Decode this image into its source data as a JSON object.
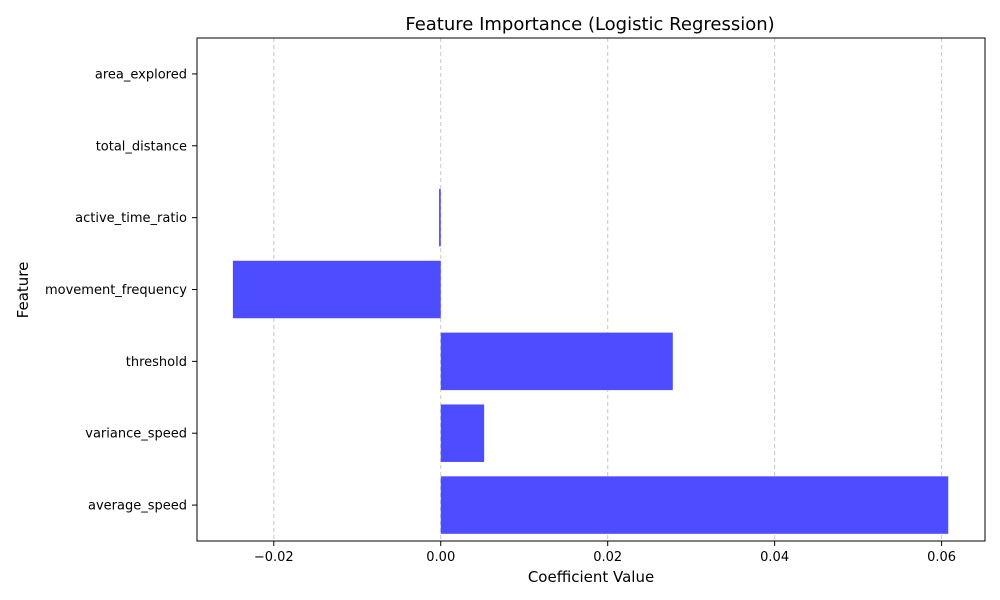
{
  "chart_data": {
    "type": "bar",
    "orientation": "horizontal",
    "title": "Feature Importance (Logistic Regression)",
    "xlabel": "Coefficient Value",
    "ylabel": "Feature",
    "categories": [
      "average_speed",
      "variance_speed",
      "threshold",
      "movement_frequency",
      "active_time_ratio",
      "total_distance",
      "area_explored"
    ],
    "values": [
      0.0608,
      0.0052,
      0.0278,
      -0.0249,
      -0.0002,
      0.0,
      0.0
    ],
    "xlim": [
      -0.0292,
      0.0652
    ],
    "x_ticks": [
      -0.02,
      0.0,
      0.02,
      0.04,
      0.06
    ],
    "x_tick_labels": [
      "−0.02",
      "0.00",
      "0.02",
      "0.04",
      "0.06"
    ],
    "grid": "x-dashed",
    "bar_color": "#4d4dff",
    "grid_color": "#c8c8c8"
  }
}
